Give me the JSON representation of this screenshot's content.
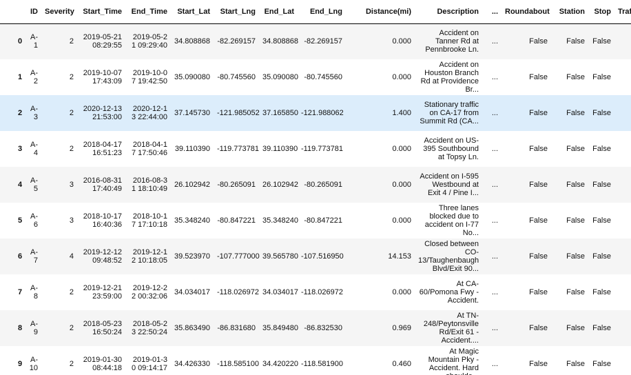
{
  "columns": [
    "ID",
    "Severity",
    "Start_Time",
    "End_Time",
    "Start_Lat",
    "Start_Lng",
    "End_Lat",
    "End_Lng",
    "Distance(mi)",
    "Description",
    "...",
    "Roundabout",
    "Station",
    "Stop",
    "Traffic_"
  ],
  "rows": [
    {
      "index": "0",
      "id": "A-1",
      "severity": "2",
      "start_date": "2019-05-21",
      "start_time": "08:29:55",
      "end_time": "2019-05-21 09:29:40",
      "start_lat": "34.808868",
      "start_lng": "-82.269157",
      "end_lat": "34.808868",
      "end_lng": "-82.269157",
      "distance": "0.000",
      "description": "Accident on Tanner Rd at Pennbrooke Ln.",
      "ellipsis": "...",
      "roundabout": "False",
      "station": "False",
      "stop": "False"
    },
    {
      "index": "1",
      "id": "A-2",
      "severity": "2",
      "start_date": "2019-10-07",
      "start_time": "17:43:09",
      "end_time": "2019-10-07 19:42:50",
      "start_lat": "35.090080",
      "start_lng": "-80.745560",
      "end_lat": "35.090080",
      "end_lng": "-80.745560",
      "distance": "0.000",
      "description": "Accident on Houston Branch Rd at Providence Br...",
      "ellipsis": "...",
      "roundabout": "False",
      "station": "False",
      "stop": "False"
    },
    {
      "index": "2",
      "id": "A-3",
      "severity": "2",
      "start_date": "2020-12-13",
      "start_time": "21:53:00",
      "end_time": "2020-12-13 22:44:00",
      "start_lat": "37.145730",
      "start_lng": "-121.985052",
      "end_lat": "37.165850",
      "end_lng": "-121.988062",
      "distance": "1.400",
      "description": "Stationary traffic on CA-17 from Summit Rd (CA...",
      "ellipsis": "...",
      "roundabout": "False",
      "station": "False",
      "stop": "False"
    },
    {
      "index": "3",
      "id": "A-4",
      "severity": "2",
      "start_date": "2018-04-17",
      "start_time": "16:51:23",
      "end_time": "2018-04-17 17:50:46",
      "start_lat": "39.110390",
      "start_lng": "-119.773781",
      "end_lat": "39.110390",
      "end_lng": "-119.773781",
      "distance": "0.000",
      "description": "Accident on US-395 Southbound at Topsy Ln.",
      "ellipsis": "...",
      "roundabout": "False",
      "station": "False",
      "stop": "False"
    },
    {
      "index": "4",
      "id": "A-5",
      "severity": "3",
      "start_date": "2016-08-31",
      "start_time": "17:40:49",
      "end_time": "2016-08-31 18:10:49",
      "start_lat": "26.102942",
      "start_lng": "-80.265091",
      "end_lat": "26.102942",
      "end_lng": "-80.265091",
      "distance": "0.000",
      "description": "Accident on I-595 Westbound at Exit 4 / Pine I...",
      "ellipsis": "...",
      "roundabout": "False",
      "station": "False",
      "stop": "False"
    },
    {
      "index": "5",
      "id": "A-6",
      "severity": "3",
      "start_date": "2018-10-17",
      "start_time": "16:40:36",
      "end_time": "2018-10-17 17:10:18",
      "start_lat": "35.348240",
      "start_lng": "-80.847221",
      "end_lat": "35.348240",
      "end_lng": "-80.847221",
      "distance": "0.000",
      "description": "Three lanes blocked due to accident on I-77 No...",
      "ellipsis": "...",
      "roundabout": "False",
      "station": "False",
      "stop": "False"
    },
    {
      "index": "6",
      "id": "A-7",
      "severity": "4",
      "start_date": "2019-12-12",
      "start_time": "09:48:52",
      "end_time": "2019-12-12 10:18:05",
      "start_lat": "39.523970",
      "start_lng": "-107.777000",
      "end_lat": "39.565780",
      "end_lng": "-107.516950",
      "distance": "14.153",
      "description": "Closed between CO-13/Taughenbaugh Blvd/Exit 90...",
      "ellipsis": "...",
      "roundabout": "False",
      "station": "False",
      "stop": "False"
    },
    {
      "index": "7",
      "id": "A-8",
      "severity": "2",
      "start_date": "2019-12-21",
      "start_time": "23:59:00",
      "end_time": "2019-12-22 00:32:06",
      "start_lat": "34.034017",
      "start_lng": "-118.026972",
      "end_lat": "34.034017",
      "end_lng": "-118.026972",
      "distance": "0.000",
      "description": "At CA-60/Pomona Fwy - Accident.",
      "ellipsis": "...",
      "roundabout": "False",
      "station": "False",
      "stop": "False"
    },
    {
      "index": "8",
      "id": "A-9",
      "severity": "2",
      "start_date": "2018-05-23",
      "start_time": "16:50:24",
      "end_time": "2018-05-23 22:50:24",
      "start_lat": "35.863490",
      "start_lng": "-86.831680",
      "end_lat": "35.849480",
      "end_lng": "-86.832530",
      "distance": "0.969",
      "description": "At TN-248/Peytonsville Rd/Exit 61 - Accident....",
      "ellipsis": "...",
      "roundabout": "False",
      "station": "False",
      "stop": "False"
    },
    {
      "index": "9",
      "id": "A-10",
      "severity": "2",
      "start_date": "2019-01-30",
      "start_time": "08:44:18",
      "end_time": "2019-01-30 09:14:17",
      "start_lat": "34.426330",
      "start_lng": "-118.585100",
      "end_lat": "34.420220",
      "end_lng": "-118.581900",
      "distance": "0.460",
      "description": "At Magic Mountain Pky - Accident. Hard shoulde...",
      "ellipsis": "...",
      "roundabout": "False",
      "station": "False",
      "stop": "False"
    }
  ],
  "hovered_row": 2,
  "colors": {
    "stripe": "#f5f5f5",
    "hover": "#dcedfb",
    "border": "#000000"
  }
}
